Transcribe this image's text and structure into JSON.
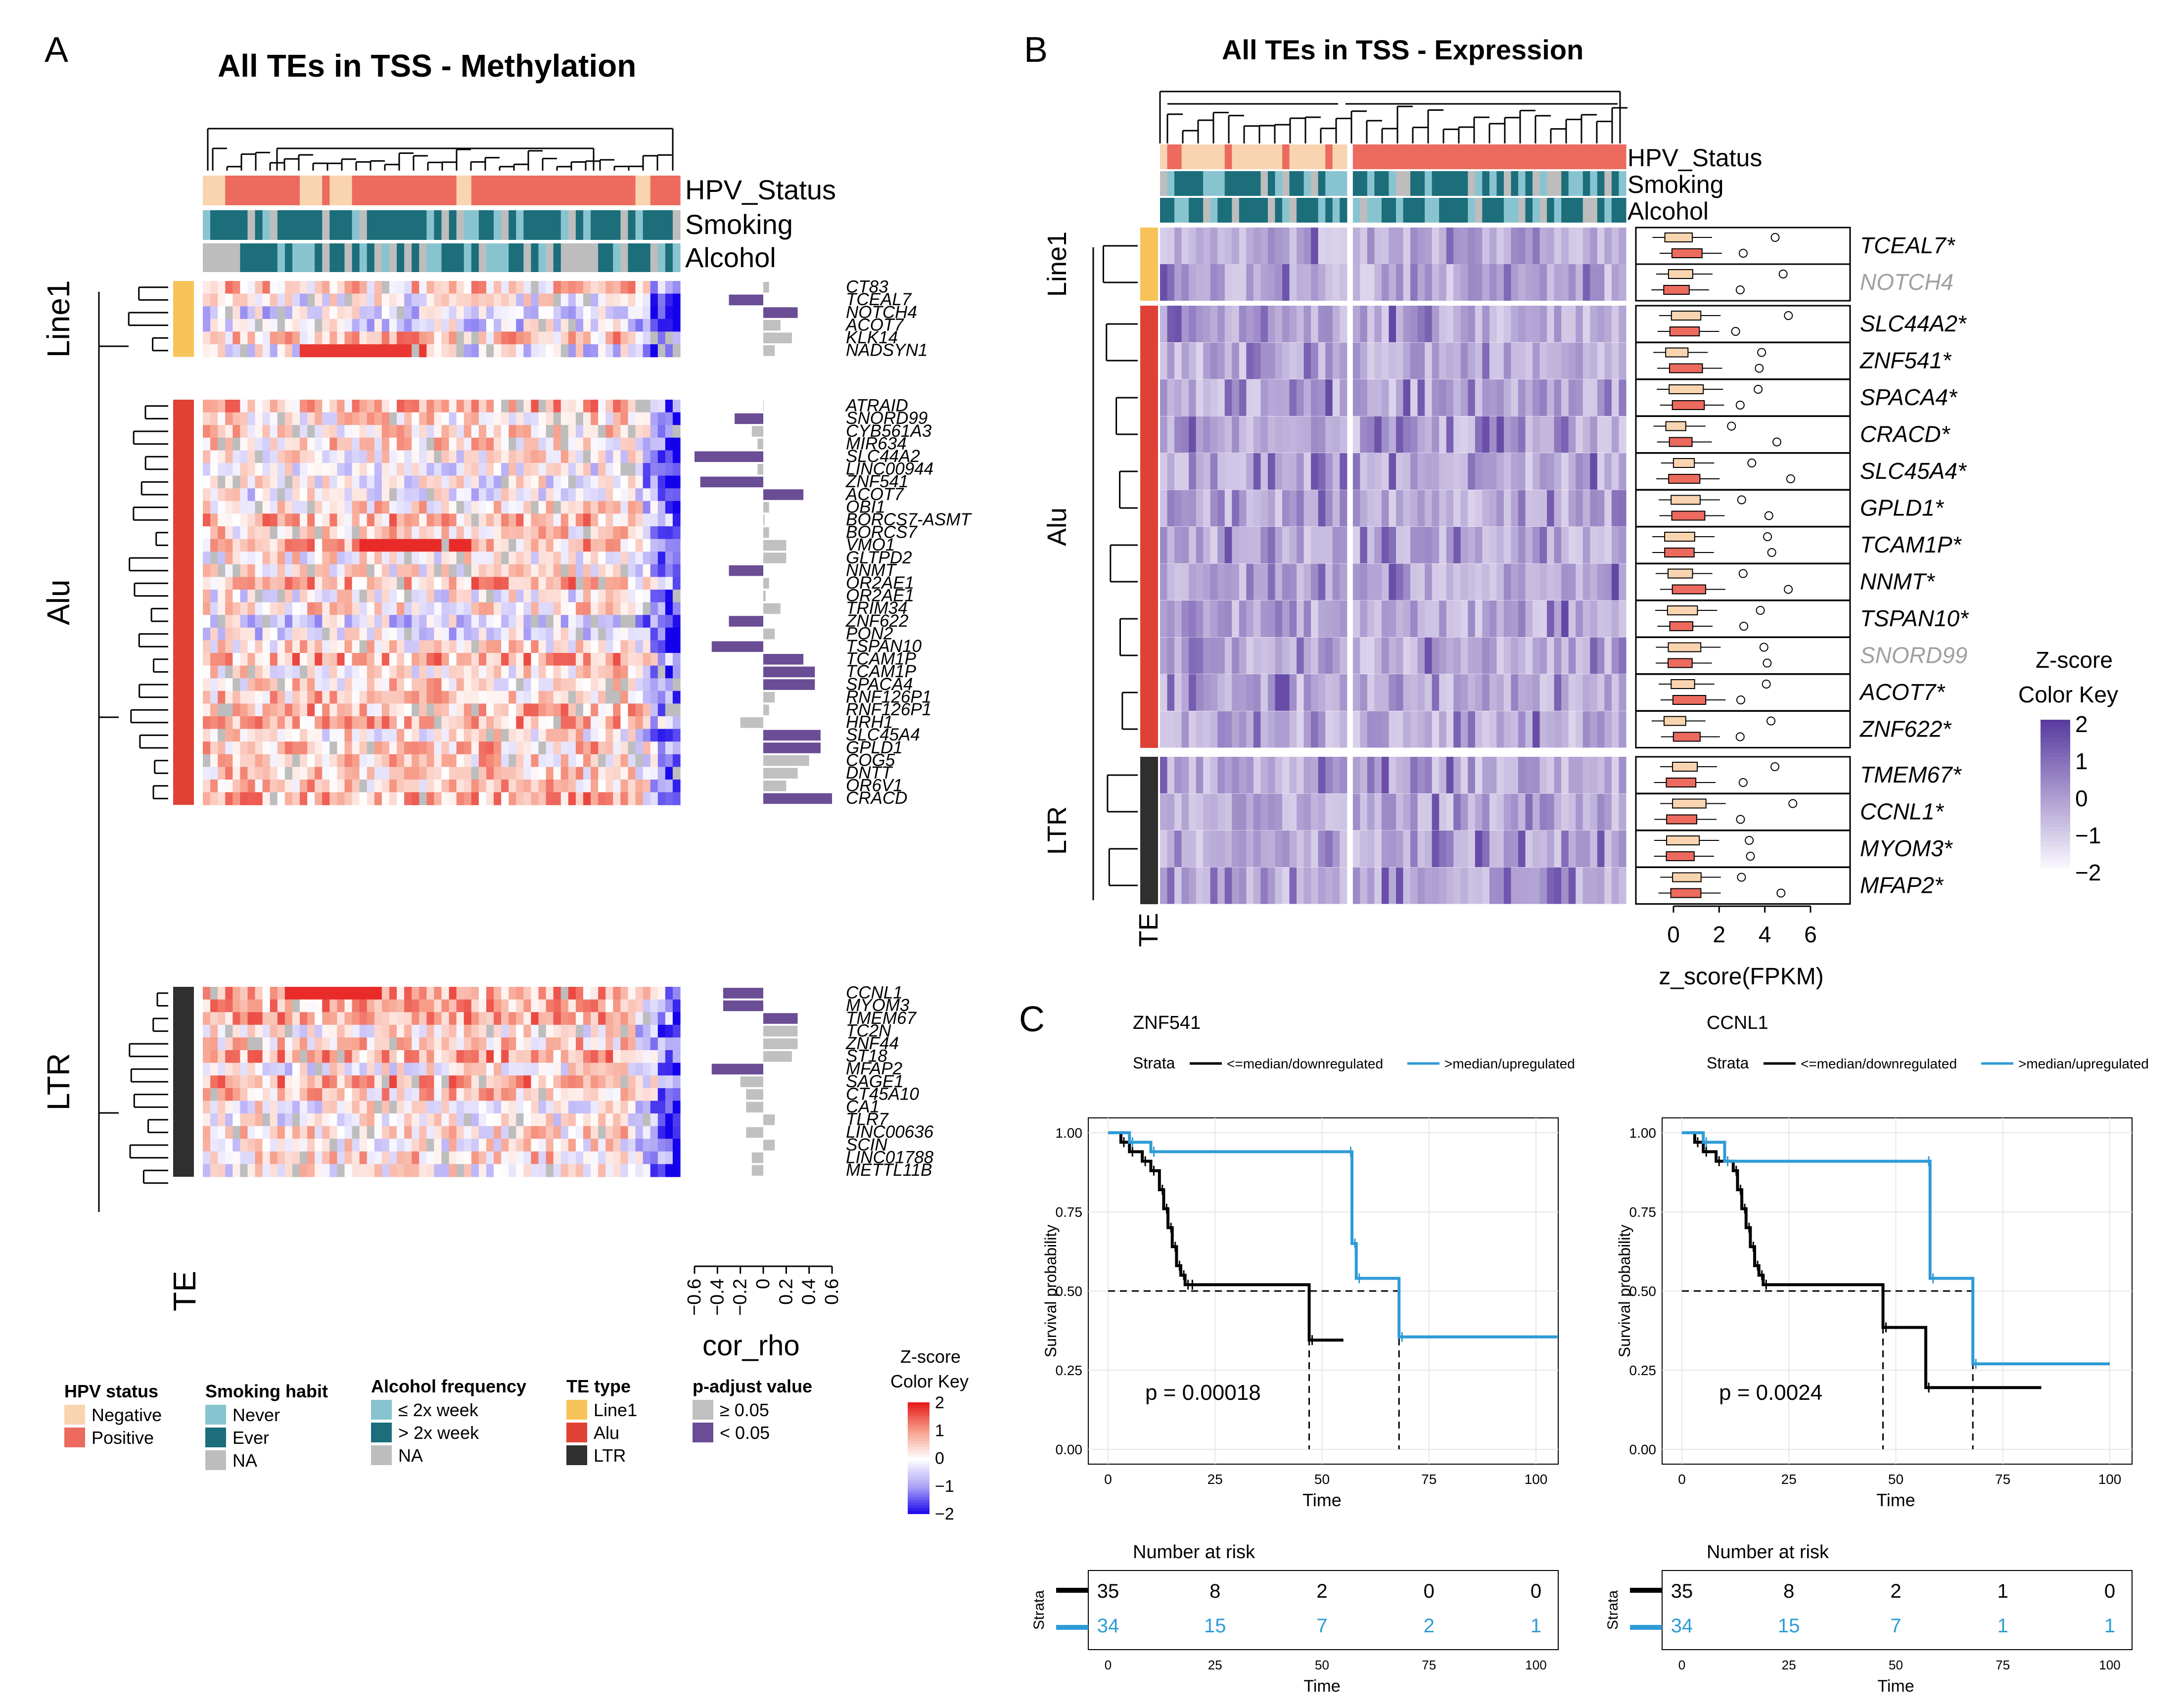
{
  "panel_a": {
    "letter": "A",
    "title": "All TEs in TSS - Methylation",
    "track_labels": [
      "HPV_Status",
      "Smoking",
      "Alcohol"
    ],
    "group_labels": [
      "Line1",
      "Alu",
      "LTR"
    ],
    "te_label": "TE",
    "genes": [
      "CT83",
      "TCEAL7",
      "NOTCH4",
      "ACOT7",
      "KLK14",
      "NADSYN1",
      "ATRAID",
      "SNORD99",
      "CYB561A3",
      "MIR634",
      "SLC44A2",
      "LINC00944",
      "ZNF541",
      "ACOT7",
      "OBI1",
      "BORCS7-ASMT",
      "BORCS7",
      "VMO1",
      "GLTPD2",
      "NNMT",
      "OR2AE1",
      "OR2AE1",
      "TRIM34",
      "ZNF622",
      "PON2",
      "TSPAN10",
      "TCAM1P",
      "TCAM1P",
      "SPACA4",
      "RNF126P1",
      "RNF126P1",
      "HRH1",
      "SLC45A4",
      "GPLD1",
      "COG5",
      "DNTT",
      "OR6V1",
      "CRACD",
      "CCNL1",
      "MYOM3",
      "TMEM67",
      "TC2N",
      "ZNF44",
      "ST18",
      "MFAP2",
      "SAGE1",
      "CT45A10",
      "CA1",
      "TLR7",
      "LINC00636",
      "SCIN",
      "LINC01788",
      "METTL11B"
    ],
    "group_sizes": [
      6,
      32,
      15
    ],
    "legends": {
      "hpv": {
        "title": "HPV status",
        "items": [
          "Negative",
          "Positive"
        ]
      },
      "smoking": {
        "title": "Smoking habit",
        "items": [
          "Never",
          "Ever",
          "NA"
        ]
      },
      "alcohol": {
        "title": "Alcohol frequency",
        "items": [
          "≤ 2x week",
          "> 2x week",
          "NA"
        ]
      },
      "te": {
        "title": "TE type",
        "items": [
          "Line1",
          "Alu",
          "LTR"
        ]
      },
      "padj": {
        "title": "p-adjust value",
        "items": [
          "≥ 0.05",
          "< 0.05"
        ]
      },
      "zkey": {
        "title_line1": "Z-score",
        "title_line2": "Color Key",
        "ticks": [
          "2",
          "1",
          "0",
          "−1",
          "−2"
        ]
      }
    }
  },
  "chart_data": [
    {
      "type": "bar",
      "panel": "A",
      "orientation": "horizontal",
      "xlabel": "cor_rho",
      "xlim": [
        -0.6,
        0.6
      ],
      "xticks": [
        "−0.6",
        "−0.4",
        "−0.2",
        "0",
        "0.2",
        "0.4",
        "0.6"
      ],
      "categories": [
        "CT83",
        "TCEAL7",
        "NOTCH4",
        "ACOT7",
        "KLK14",
        "NADSYN1",
        "ATRAID",
        "SNORD99",
        "CYB561A3",
        "MIR634",
        "SLC44A2",
        "LINC00944",
        "ZNF541",
        "ACOT7",
        "OBI1",
        "BORCS7-ASMT",
        "BORCS7",
        "VMO1",
        "GLTPD2",
        "NNMT",
        "OR2AE1",
        "OR2AE1",
        "TRIM34",
        "ZNF622",
        "PON2",
        "TSPAN10",
        "TCAM1P",
        "TCAM1P",
        "SPACA4",
        "RNF126P1",
        "RNF126P1",
        "HRH1",
        "SLC45A4",
        "GPLD1",
        "COG5",
        "DNTT",
        "OR6V1",
        "CRACD",
        "CCNL1",
        "MYOM3",
        "TMEM67",
        "TC2N",
        "ZNF44",
        "ST18",
        "MFAP2",
        "SAGE1",
        "CT45A10",
        "CA1",
        "TLR7",
        "LINC00636",
        "SCIN",
        "LINC01788",
        "METTL11B"
      ],
      "values": [
        0.05,
        -0.3,
        0.3,
        0.15,
        0.25,
        0.1,
        0,
        -0.25,
        -0.1,
        -0.05,
        -0.6,
        -0.05,
        -0.55,
        0.35,
        0.05,
        0.01,
        0.05,
        0.2,
        0.2,
        -0.3,
        0.05,
        0.02,
        0.15,
        -0.3,
        0.1,
        -0.45,
        0.35,
        0.45,
        0.45,
        0.1,
        0.05,
        -0.2,
        0.5,
        0.5,
        0.4,
        0.3,
        0.2,
        0.6,
        -0.35,
        -0.35,
        0.3,
        0.3,
        0.3,
        0.25,
        -0.45,
        -0.2,
        -0.15,
        -0.15,
        0.1,
        -0.15,
        0.1,
        -0.1,
        -0.1
      ],
      "significant": [
        false,
        true,
        true,
        false,
        false,
        false,
        false,
        true,
        false,
        false,
        true,
        false,
        true,
        true,
        false,
        false,
        false,
        false,
        false,
        true,
        false,
        false,
        false,
        true,
        false,
        true,
        true,
        true,
        true,
        false,
        false,
        false,
        true,
        true,
        false,
        false,
        false,
        true,
        true,
        true,
        true,
        false,
        false,
        false,
        true,
        false,
        false,
        false,
        false,
        false,
        false,
        false,
        false
      ]
    },
    {
      "type": "box",
      "panel": "B",
      "title": "All TEs in TSS - Expression",
      "xlabel": "z_score(FPKM)",
      "xticks": [
        "0",
        "2",
        "4",
        "6"
      ],
      "categories": [
        "TCEAL7*",
        "NOTCH4",
        "SLC44A2*",
        "ZNF541*",
        "SPACA4*",
        "CRACD*",
        "SLC45A4*",
        "GPLD1*",
        "TCAM1P*",
        "NNMT*",
        "TSPAN10*",
        "SNORD99",
        "ACOT7*",
        "ZNF622*",
        "TMEM67*",
        "CCNL1*",
        "MYOM3*",
        "MFAP2*"
      ],
      "significant": [
        true,
        false,
        true,
        true,
        true,
        true,
        true,
        true,
        true,
        true,
        true,
        false,
        true,
        true,
        true,
        true,
        true,
        true
      ],
      "group_labels": [
        "Line1",
        "Alu",
        "LTR"
      ],
      "group_sizes": [
        2,
        12,
        4
      ],
      "te_label": "TE",
      "track_labels": [
        "HPV_Status",
        "Smoking",
        "Alcohol"
      ],
      "zkey": {
        "title_line1": "Z-score",
        "title_line2": "Color Key",
        "ticks": [
          "2",
          "1",
          "0",
          "−1",
          "−2"
        ]
      }
    },
    {
      "type": "line",
      "subtype": "kaplan-meier",
      "panel": "C",
      "title": "ZNF541",
      "xlabel": "Time",
      "ylabel": "Survival probability",
      "xlim": [
        0,
        100
      ],
      "ylim": [
        0,
        1
      ],
      "xticks": [
        "0",
        "25",
        "50",
        "75",
        "100"
      ],
      "yticks": [
        "0.00",
        "0.25",
        "0.50",
        "0.75",
        "1.00"
      ],
      "strata_label": "Strata",
      "legend": [
        "<=median/downregulated",
        ">median/upregulated"
      ],
      "pvalue": "p = 0.00018",
      "series": [
        {
          "name": "<=median/downregulated",
          "x": [
            0,
            3,
            5,
            8,
            10,
            12,
            13,
            14,
            15,
            16,
            17,
            18,
            19,
            47,
            55
          ],
          "y": [
            1,
            0.97,
            0.94,
            0.91,
            0.88,
            0.82,
            0.76,
            0.7,
            0.64,
            0.58,
            0.55,
            0.52,
            0.52,
            0.345,
            0.345
          ]
        },
        {
          "name": ">median/upregulated",
          "x": [
            0,
            5,
            10,
            56,
            57,
            58,
            68,
            105
          ],
          "y": [
            1,
            0.97,
            0.94,
            0.94,
            0.65,
            0.54,
            0.355,
            0.355
          ]
        }
      ],
      "median_lines": [
        47,
        68
      ],
      "risk_table": {
        "title": "Number at risk",
        "strata_label": "Strata",
        "rows": [
          [
            "35",
            "8",
            "2",
            "0",
            "0"
          ],
          [
            "34",
            "15",
            "7",
            "2",
            "1"
          ]
        ],
        "xlabel": "Time"
      }
    },
    {
      "type": "line",
      "subtype": "kaplan-meier",
      "panel": "C",
      "title": "CCNL1",
      "xlabel": "Time",
      "ylabel": "Survival probability",
      "xlim": [
        0,
        100
      ],
      "ylim": [
        0,
        1
      ],
      "xticks": [
        "0",
        "25",
        "50",
        "75",
        "100"
      ],
      "yticks": [
        "0.00",
        "0.25",
        "0.50",
        "0.75",
        "1.00"
      ],
      "strata_label": "Strata",
      "legend": [
        "<=median/downregulated",
        ">median/upregulated"
      ],
      "pvalue": "p = 0.0024",
      "series": [
        {
          "name": "<=median/downregulated",
          "x": [
            0,
            3,
            5,
            8,
            12,
            13,
            14,
            15,
            16,
            17,
            18,
            19,
            47,
            57,
            84
          ],
          "y": [
            1,
            0.97,
            0.94,
            0.91,
            0.88,
            0.82,
            0.76,
            0.7,
            0.64,
            0.58,
            0.55,
            0.52,
            0.385,
            0.195,
            0.195
          ]
        },
        {
          "name": ">median/upregulated",
          "x": [
            0,
            5,
            10,
            57,
            58,
            68,
            100
          ],
          "y": [
            1,
            0.97,
            0.91,
            0.91,
            0.54,
            0.27,
            0.27
          ]
        }
      ],
      "median_lines": [
        47,
        68
      ],
      "risk_table": {
        "title": "Number at risk",
        "strata_label": "Strata",
        "rows": [
          [
            "35",
            "8",
            "2",
            "1",
            "0"
          ],
          [
            "34",
            "15",
            "7",
            "1",
            "1"
          ]
        ],
        "xlabel": "Time"
      }
    }
  ],
  "panel_b_letter": "B",
  "panel_c_letter": "C",
  "colors": {
    "hpv_neg": "#f9d4b0",
    "hpv_pos": "#ec6a5e",
    "smk_never": "#88c4d0",
    "smk_ever": "#1b6e7a",
    "na": "#bdbdbd",
    "line1": "#f7c359",
    "alu": "#e04135",
    "ltr": "#2f2f2f",
    "sig": "#6a4d94",
    "nonsig": "#c0c0c0",
    "km_down": "#000000",
    "km_up": "#2e9bd6"
  }
}
